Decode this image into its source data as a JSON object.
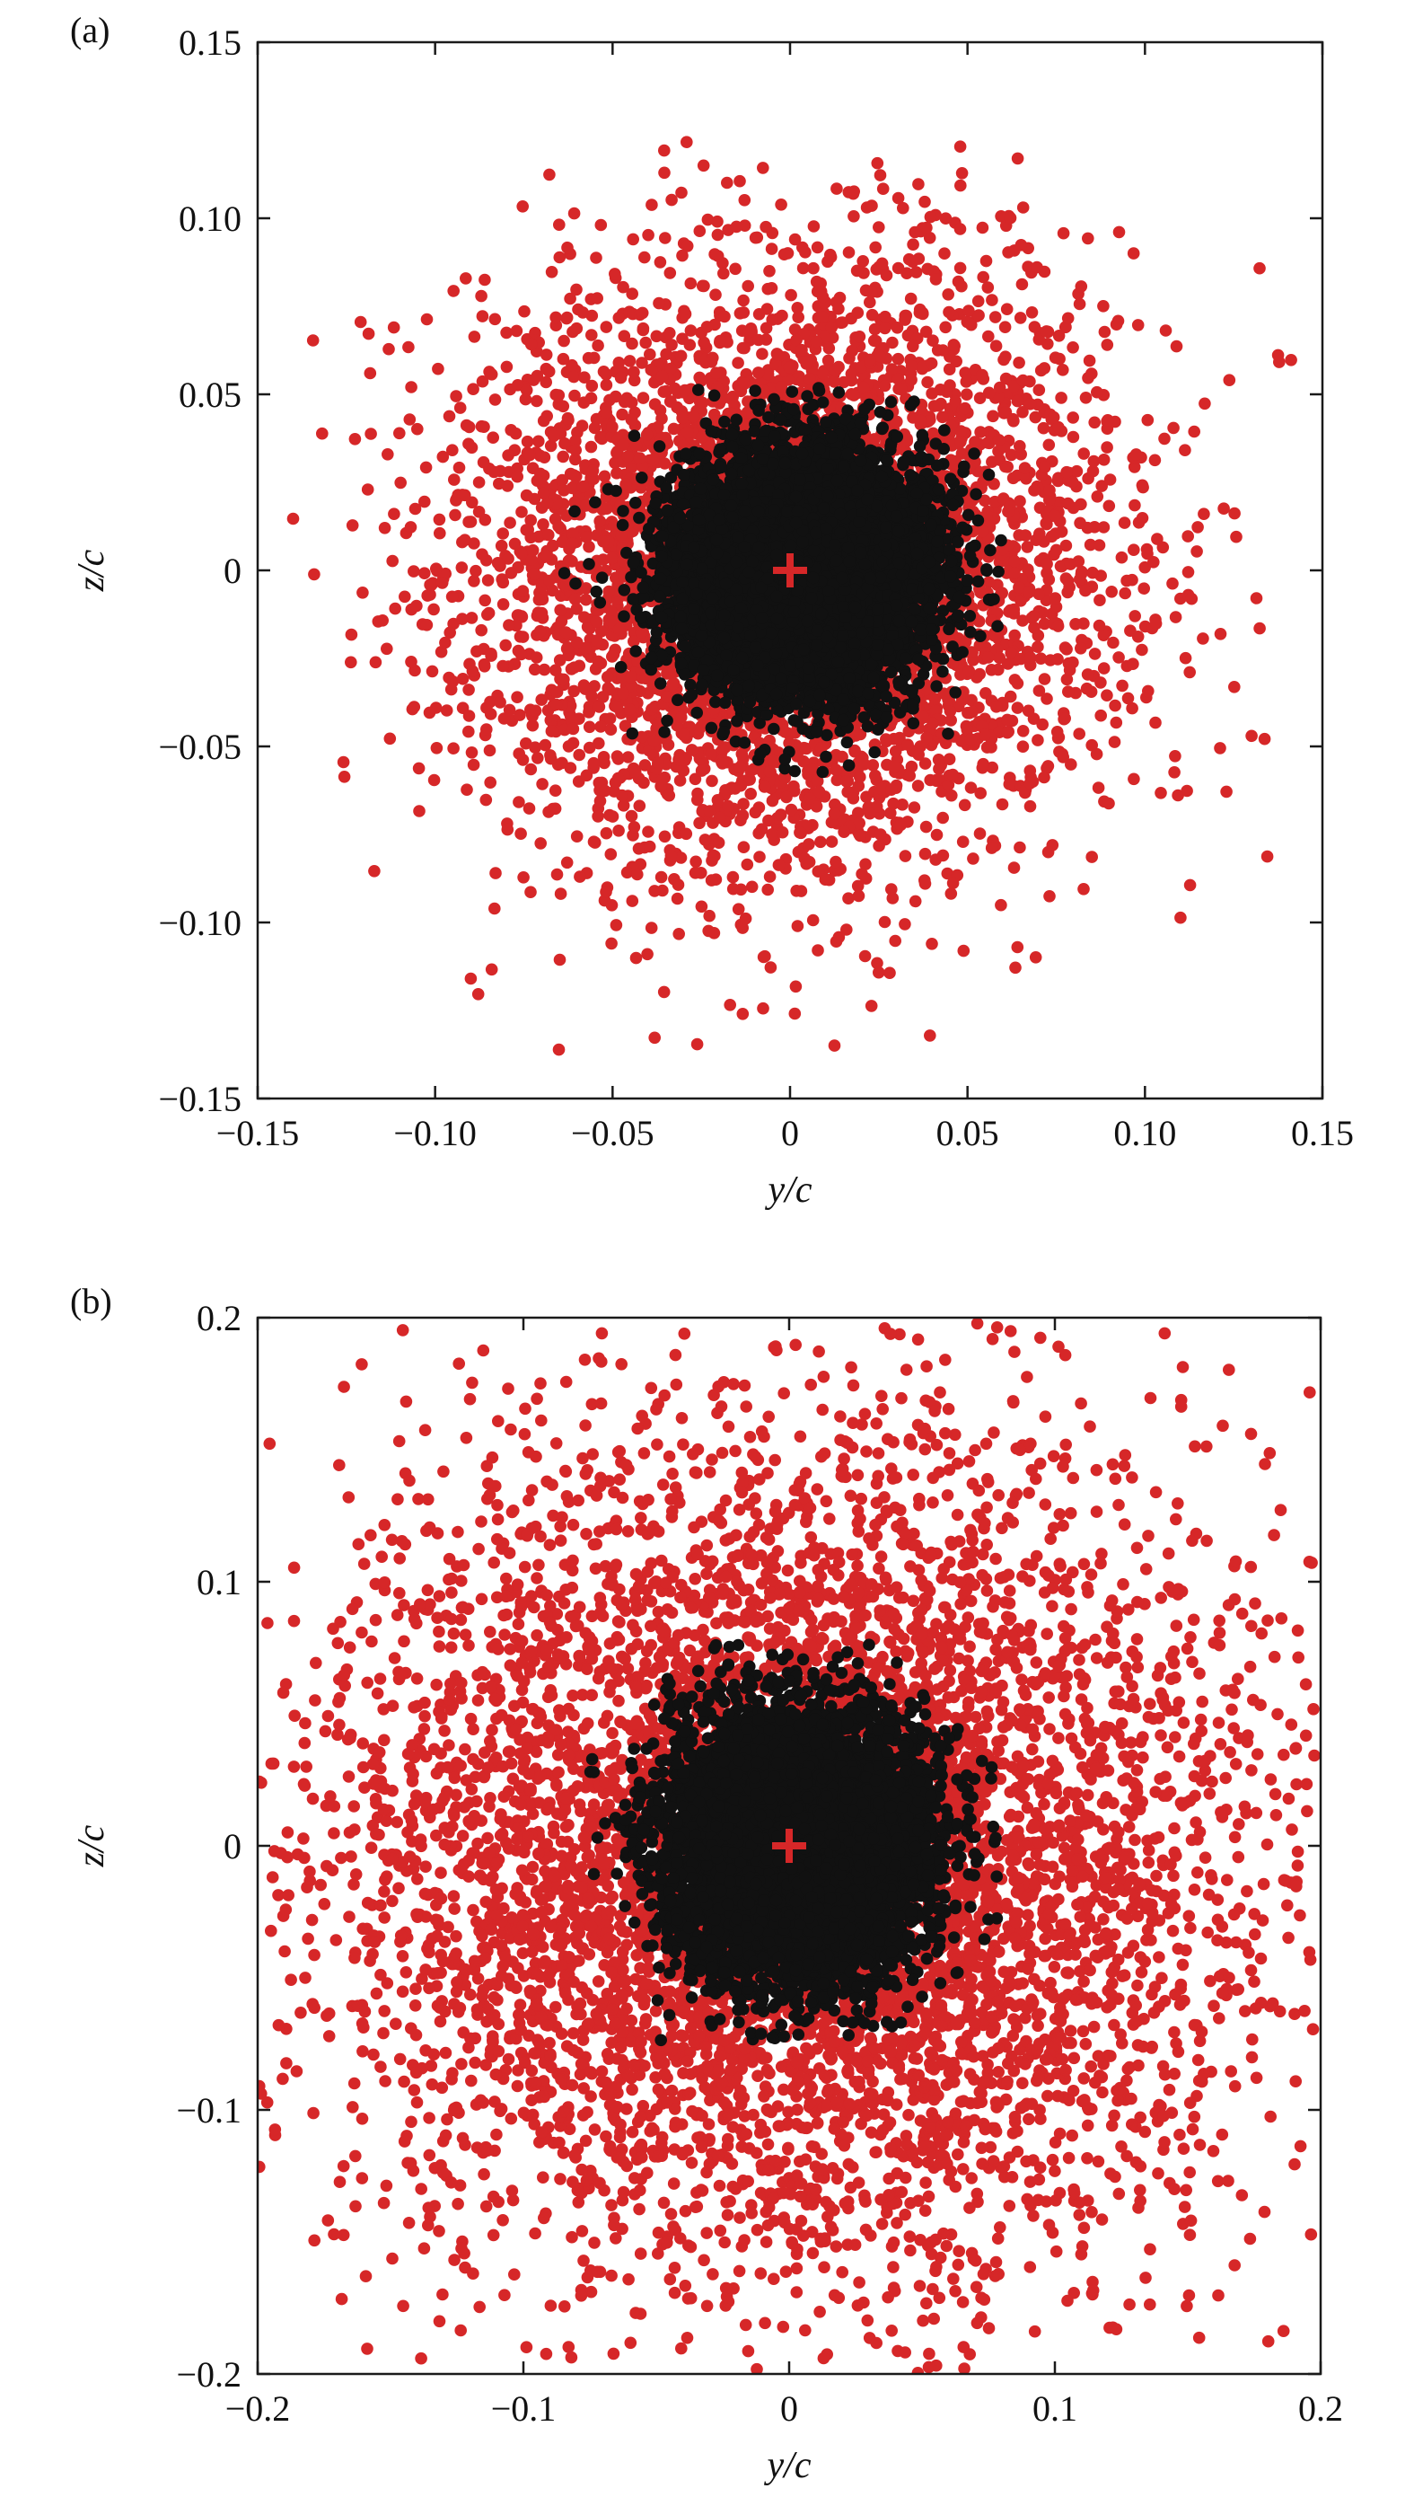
{
  "chart_data": [
    {
      "type": "scatter",
      "panel_label": "(a)",
      "xlabel": "y/c",
      "ylabel": "z/c",
      "xlim": [
        -0.15,
        0.15
      ],
      "ylim": [
        -0.15,
        0.15
      ],
      "xticks": [
        {
          "value": -0.15,
          "label": "−0.15"
        },
        {
          "value": -0.1,
          "label": "−0.10"
        },
        {
          "value": -0.05,
          "label": "−0.05"
        },
        {
          "value": 0,
          "label": "0"
        },
        {
          "value": 0.05,
          "label": "0.05"
        },
        {
          "value": 0.1,
          "label": "0.10"
        },
        {
          "value": 0.15,
          "label": "0.15"
        }
      ],
      "yticks": [
        {
          "value": -0.15,
          "label": "−0.15"
        },
        {
          "value": -0.1,
          "label": "−0.10"
        },
        {
          "value": -0.05,
          "label": "−0.05"
        },
        {
          "value": 0,
          "label": "0"
        },
        {
          "value": 0.05,
          "label": "0.05"
        },
        {
          "value": 0.1,
          "label": "0.10"
        },
        {
          "value": 0.15,
          "label": "0.15"
        }
      ],
      "series": [
        {
          "color": "#d62728",
          "std_y": 0.045,
          "std_z": 0.042,
          "mean_y": 0.0,
          "mean_z": 0.0,
          "count": 5000,
          "range": [
            -0.14,
            0.144,
            -0.14,
            0.123
          ]
        },
        {
          "color": "#111111",
          "std_y": 0.018,
          "std_z": 0.017,
          "mean_y": 0.003,
          "mean_z": 0.0,
          "count": 7000,
          "range": [
            -0.07,
            0.06,
            -0.065,
            0.052
          ]
        }
      ],
      "center_marker": {
        "y": 0,
        "z": 0,
        "color": "#d62728",
        "symbol": "plus"
      }
    },
    {
      "type": "scatter",
      "panel_label": "(b)",
      "xlabel": "y/c",
      "ylabel": "z/c",
      "xlim": [
        -0.2,
        0.2
      ],
      "ylim": [
        -0.2,
        0.2
      ],
      "xticks": [
        {
          "value": -0.2,
          "label": "−0.2"
        },
        {
          "value": -0.1,
          "label": "−0.1"
        },
        {
          "value": 0,
          "label": "0"
        },
        {
          "value": 0.1,
          "label": "0.1"
        },
        {
          "value": 0.2,
          "label": "0.2"
        }
      ],
      "yticks": [
        {
          "value": -0.2,
          "label": "−0.2"
        },
        {
          "value": -0.1,
          "label": "−0.1"
        },
        {
          "value": 0,
          "label": "0"
        },
        {
          "value": 0.1,
          "label": "0.1"
        },
        {
          "value": 0.2,
          "label": "0.2"
        }
      ],
      "series": [
        {
          "color": "#d62728",
          "std_y": 0.085,
          "std_z": 0.08,
          "mean_y": 0.0,
          "mean_z": -0.005,
          "count": 6500,
          "range": [
            -0.2,
            0.2,
            -0.2,
            0.2
          ]
        },
        {
          "color": "#111111",
          "std_y": 0.024,
          "std_z": 0.025,
          "mean_y": 0.002,
          "mean_z": 0.0,
          "count": 7000,
          "range": [
            -0.075,
            0.08,
            -0.075,
            0.078
          ]
        }
      ],
      "center_marker": {
        "y": 0,
        "z": 0,
        "color": "#d62728",
        "symbol": "plus"
      }
    }
  ]
}
